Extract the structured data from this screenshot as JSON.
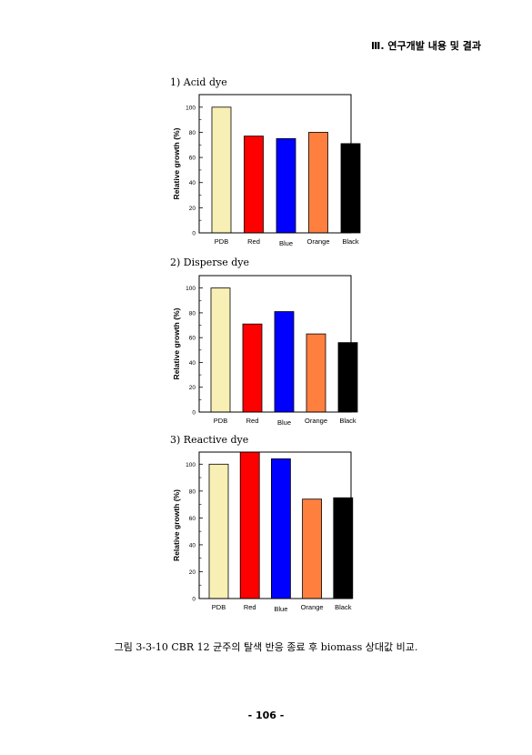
{
  "header": {
    "title": "Ⅲ. 연구개발 내용 및 결과"
  },
  "chart_data": [
    {
      "type": "bar",
      "title": "1) Acid dye",
      "ylabel": "Relative growth (%)",
      "xlabel": "",
      "categories": [
        "PDB",
        "Red",
        "Blue",
        "Orange",
        "Black"
      ],
      "values": [
        100,
        77,
        75,
        80,
        71
      ],
      "colors": [
        "#f7efb4",
        "#ff0000",
        "#0000ff",
        "#ff7f3f",
        "#000000"
      ],
      "ylim": [
        0,
        110
      ],
      "yticks": [
        0,
        20,
        40,
        60,
        80,
        100
      ],
      "grid": false
    },
    {
      "type": "bar",
      "title": "2) Disperse dye",
      "ylabel": "Relative growth (%)",
      "xlabel": "",
      "categories": [
        "PDB",
        "Red",
        "Blue",
        "Orange",
        "Black"
      ],
      "values": [
        100,
        71,
        81,
        63,
        56
      ],
      "colors": [
        "#f7efb4",
        "#ff0000",
        "#0000ff",
        "#ff7f3f",
        "#000000"
      ],
      "ylim": [
        0,
        110
      ],
      "yticks": [
        0,
        20,
        40,
        60,
        80,
        100
      ],
      "grid": false
    },
    {
      "type": "bar",
      "title": "3) Reactive dye",
      "ylabel": "Relative growth (%)",
      "xlabel": "",
      "categories": [
        "PDB",
        "Red",
        "Blue",
        "Orange",
        "Black"
      ],
      "values": [
        100,
        109,
        104,
        74,
        75
      ],
      "colors": [
        "#f7efb4",
        "#ff0000",
        "#0000ff",
        "#ff7f3f",
        "#000000"
      ],
      "ylim": [
        0,
        109
      ],
      "yticks": [
        0,
        20,
        40,
        60,
        80,
        100
      ],
      "grid": false
    }
  ],
  "caption": "그림 3-3-10 CBR 12 균주의 탈색 반응 종료 후 biomass 상대값 비교.",
  "page_number": "- 106 -"
}
